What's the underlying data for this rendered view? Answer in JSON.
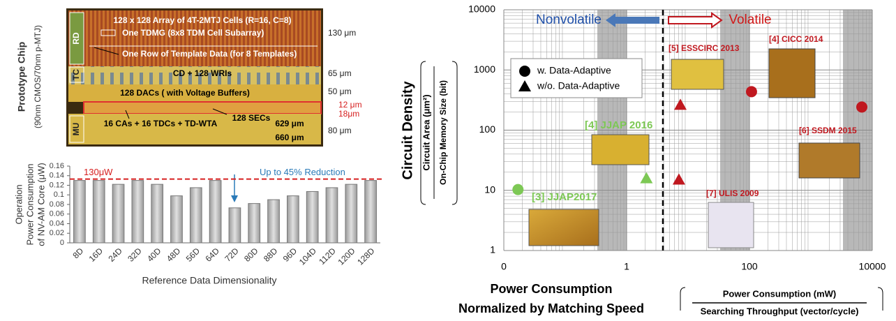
{
  "chip_figure": {
    "side_label": "Prototype Chip",
    "side_sublabel": "(90nm CMOS/70nm p-MTJ)",
    "blocks": [
      "RD",
      "TC",
      "MU"
    ],
    "labels": [
      "128 x 128 Array of 4T-2MTJ Cells (R=16, C=8)",
      "One TDMG (8x8 TDM Cell Subarray)",
      "One Row of Template Data (for 8 Templates)",
      "CD + 128 WRIs",
      "128 DACs  ( with Voltage Buffers)",
      "128 SECs",
      "16 CAs + 16 TDCs + TD-WTA",
      "629 μm",
      "660 μm"
    ],
    "dimensions": [
      "130 μm",
      "65 μm",
      "50 μm",
      "12 μm",
      "18μm",
      "80 μm"
    ]
  },
  "chart_data": [
    {
      "type": "bar",
      "y_label": [
        "Operation",
        "Power Consumption",
        "of NV-AM Core (μW)"
      ],
      "x_label": "Reference Data Dimensionality",
      "categories": [
        "8D",
        "16D",
        "24D",
        "32D",
        "40D",
        "48D",
        "56D",
        "64D",
        "72D",
        "80D",
        "88D",
        "96D",
        "104D",
        "112D",
        "120D",
        "128D"
      ],
      "values": [
        0.13,
        0.13,
        0.122,
        0.13,
        0.122,
        0.098,
        0.115,
        0.13,
        0.073,
        0.082,
        0.09,
        0.098,
        0.107,
        0.115,
        0.122,
        0.13
      ],
      "color": "#b8b8b8",
      "ylim": [
        0,
        0.16
      ],
      "yticks": [
        0,
        0.02,
        0.04,
        0.06,
        0.08,
        0.1,
        0.12,
        0.14,
        0.16
      ],
      "reference_line": {
        "value": 0.133,
        "label": "130μW",
        "color": "#d62020"
      },
      "annotation": "Up to 45% Reduction"
    },
    {
      "type": "scatter",
      "y_label": "Circuit Density",
      "y_label_fraction": {
        "numerator": "Circuit   Area  (μm²)",
        "denominator": "On-Chip Memory Size (bit)"
      },
      "x_label": [
        "Power Consumption",
        "Normalized by  Matching Speed"
      ],
      "x_label_fraction": {
        "numerator": "Power Consumption  (mW)",
        "denominator": "Searching Throughput (vector/cycle)"
      },
      "x_scale": "log",
      "y_scale": "log",
      "xlim": [
        0.01,
        10000
      ],
      "xticks": [
        {
          "value": 0.01,
          "label": "0"
        },
        1,
        100,
        10000
      ],
      "ylim": [
        1,
        10000
      ],
      "yticks": [
        1,
        10,
        100,
        1000,
        10000
      ],
      "grid": true,
      "divider_x": 3.9,
      "left_label": "Nonvolatile",
      "right_label": "Volatile",
      "series": [
        {
          "name": "w. Data-Adaptive",
          "marker": "circle",
          "x": [
            0.017,
            108,
            6760
          ],
          "values": [
            10.3,
            436,
            242
          ],
          "colors": [
            "#7dc855",
            "#c0181f",
            "#c0181f"
          ],
          "point_labels": [
            "[3] JJAP2017",
            "[4] CICC 2014",
            "[6] SSDM 2015"
          ]
        },
        {
          "name": "w/o. Data-Adaptive",
          "marker": "triangle",
          "x": [
            2.1,
            7.5,
            7.1
          ],
          "values": [
            15.8,
            262,
            15
          ],
          "colors": [
            "#7dc855",
            "#c0181f",
            "#c0181f"
          ],
          "point_labels": [
            "[4] JJAP 2016",
            "[5] ESSCIRC 2013",
            "[7] ULIS 2009"
          ]
        }
      ]
    }
  ]
}
